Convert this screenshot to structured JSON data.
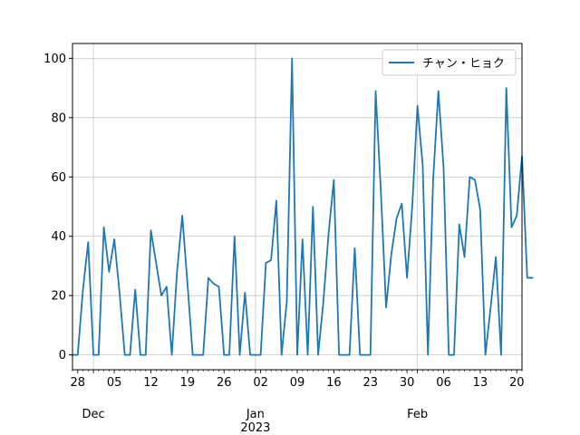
{
  "chart_data": {
    "type": "line",
    "title": "",
    "xlabel": "",
    "ylabel": "",
    "grid": true,
    "legend_position": "top-right",
    "x_start": "2022-11-27",
    "x_end": "2023-02-21",
    "ylim": [
      -5,
      105
    ],
    "y_ticks": [
      0,
      20,
      40,
      60,
      80,
      100
    ],
    "x_ticks": [
      {
        "date": "2022-11-28",
        "label": "28"
      },
      {
        "date": "2022-12-05",
        "label": "05"
      },
      {
        "date": "2022-12-12",
        "label": "12"
      },
      {
        "date": "2022-12-19",
        "label": "19"
      },
      {
        "date": "2022-12-26",
        "label": "26"
      },
      {
        "date": "2023-01-02",
        "label": "02"
      },
      {
        "date": "2023-01-09",
        "label": "09"
      },
      {
        "date": "2023-01-16",
        "label": "16"
      },
      {
        "date": "2023-01-23",
        "label": "23"
      },
      {
        "date": "2023-01-30",
        "label": "30"
      },
      {
        "date": "2023-02-06",
        "label": "06"
      },
      {
        "date": "2023-02-13",
        "label": "13"
      },
      {
        "date": "2023-02-20",
        "label": "20"
      }
    ],
    "major_ticks": [
      {
        "date": "2022-12-01",
        "label": "Dec"
      },
      {
        "date": "2023-01-01",
        "label": "Jan",
        "sublabel": "2023"
      },
      {
        "date": "2023-02-01",
        "label": "Feb"
      }
    ],
    "series": [
      {
        "name": "チャン・ヒョク",
        "color": "#1f77b4",
        "values": [
          0,
          0,
          22,
          38,
          0,
          0,
          43,
          28,
          39,
          21,
          0,
          0,
          22,
          0,
          0,
          42,
          31,
          20,
          23,
          0,
          28,
          47,
          24,
          0,
          0,
          0,
          26,
          24,
          23,
          0,
          0,
          40,
          0,
          21,
          0,
          0,
          0,
          31,
          32,
          52,
          0,
          18,
          100,
          0,
          39,
          0,
          50,
          0,
          18,
          41,
          59,
          0,
          0,
          0,
          36,
          0,
          0,
          0,
          89,
          55,
          16,
          34,
          46,
          51,
          26,
          50,
          84,
          64,
          0,
          59,
          89,
          63,
          0,
          0,
          44,
          33,
          60,
          59,
          49,
          0,
          16,
          33,
          0,
          90,
          43,
          47,
          67,
          26,
          26
        ]
      }
    ]
  }
}
